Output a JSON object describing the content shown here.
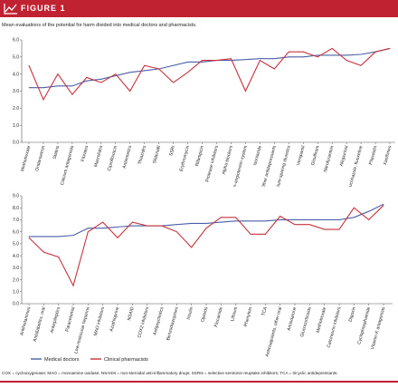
{
  "figure": {
    "label": "FIGURE 1",
    "caption": "Mean evaluations of the potential for harm divided into medical doctors and pharmacists.",
    "footnote": "COX = cyclooxygenase;  MAO = monoamine oxidase;  NSAIDs = non-steroidal anti-inflammatory drugs;  SSRIs = selective serotonin reuptake inhibitors;  TCA = tricyclic antidepressants.",
    "colors": {
      "accent": "#c02232",
      "doctors": "#4a5fa8",
      "pharmacists": "#c8323c"
    }
  },
  "chart_data": [
    {
      "type": "line",
      "ylim": [
        0,
        6
      ],
      "yticks": [
        "0.0",
        "1.0",
        "2.0",
        "3.0",
        "4.0",
        "5.0",
        "6.0"
      ],
      "categories": [
        "Methotrexate",
        "Ondansetron",
        "Statins",
        "Calcium antagonists",
        "Fibrates",
        "Macrolides",
        "Ciprofloxacin",
        "Antiemetics",
        "Thiazides",
        "Sildenafil",
        "SSRI",
        "Erythromycin",
        "Rifampicin",
        "Protease inhibitors",
        "Alpha blockers",
        "Renin-angiotensin system",
        "Isoniazide",
        "Other antidepressants",
        "Potassium-sparing diuretics",
        "Verapamil",
        "Disulfiram",
        "Nitrofurantoin",
        "Allopurinol",
        "Fluconazole, fluoxetine",
        "Pitavastin",
        "Xanthines"
      ],
      "series": [
        {
          "name": "Medical doctors",
          "values": [
            3.2,
            3.2,
            3.3,
            3.3,
            3.6,
            3.7,
            3.9,
            4.1,
            4.2,
            4.3,
            4.5,
            4.7,
            4.7,
            4.8,
            4.8,
            4.85,
            4.9,
            4.9,
            5.0,
            5.0,
            5.1,
            5.1,
            5.1,
            5.15,
            5.3,
            5.5
          ]
        },
        {
          "name": "Clinical pharmacists",
          "values": [
            4.5,
            2.5,
            4.0,
            2.8,
            3.8,
            3.5,
            4.0,
            3.0,
            4.5,
            4.3,
            3.5,
            4.1,
            4.8,
            4.8,
            4.9,
            3.0,
            4.8,
            4.3,
            5.3,
            5.3,
            5.0,
            5.5,
            4.8,
            4.5,
            5.3,
            5.5
          ]
        }
      ]
    },
    {
      "type": "line",
      "ylim": [
        0,
        9
      ],
      "yticks": [
        "0.0",
        "1.0",
        "2.0",
        "3.0",
        "4.0",
        "5.0",
        "6.0",
        "7.0",
        "8.0",
        "9.0"
      ],
      "categories": [
        "Antihistamines",
        "Antidiabetics, oral",
        "Antiepileptics",
        "Paracetamol",
        "Low-molecular heparins",
        "MAO inhibitors",
        "Azathioprine",
        "NSAID",
        "COX2 inhibitors",
        "Antipsychotics",
        "Benzodiazepines",
        "Insulin",
        "Opioids",
        "Flecainide",
        "Lithium",
        "Phenytoin",
        "TCA",
        "Anticoagulants, other oral",
        "Amiodarone",
        "Glucocorticoids",
        "Methotrexate",
        "Calcineurin inhibitors",
        "Digoxin",
        "Cyclophosphamide",
        "Vitamin K antagonists"
      ],
      "series": [
        {
          "name": "Medical doctors",
          "values": [
            5.6,
            5.6,
            5.6,
            5.7,
            6.3,
            6.3,
            6.4,
            6.5,
            6.5,
            6.5,
            6.6,
            6.7,
            6.7,
            6.8,
            6.9,
            6.9,
            6.9,
            7.0,
            7.0,
            7.0,
            7.0,
            7.0,
            7.2,
            7.7,
            8.3
          ]
        },
        {
          "name": "Clinical pharmacists",
          "values": [
            5.5,
            4.3,
            3.9,
            1.5,
            6.0,
            6.8,
            5.5,
            6.8,
            6.5,
            6.5,
            6.0,
            4.7,
            6.3,
            7.2,
            7.2,
            5.8,
            5.8,
            7.3,
            6.6,
            6.6,
            6.2,
            6.2,
            8.0,
            7.0,
            8.2
          ]
        }
      ]
    }
  ],
  "legend": {
    "doctors": "Medical doctors",
    "pharmacists": "Clinical pharmacists"
  }
}
